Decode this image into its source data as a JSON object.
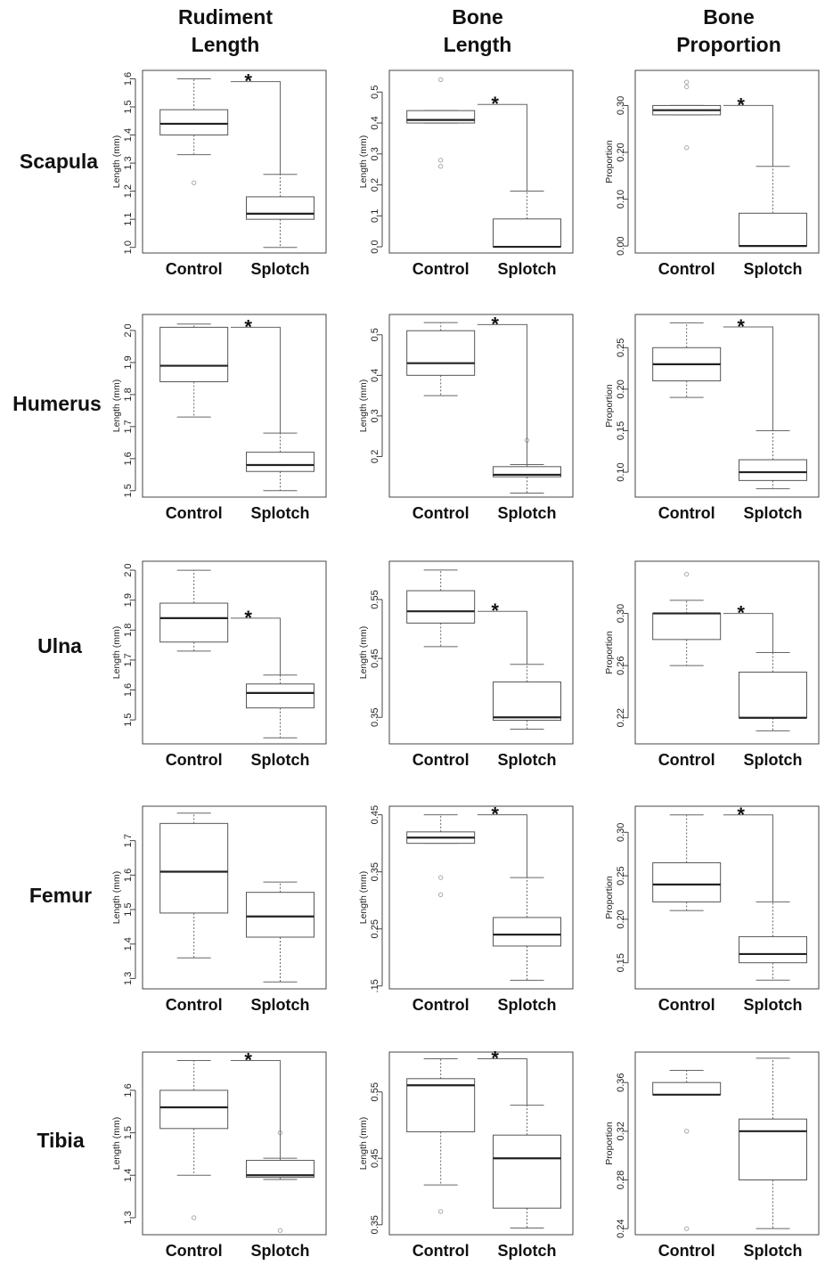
{
  "column_titles": [
    [
      "Rudiment",
      "Length"
    ],
    [
      "Bone",
      "Length"
    ],
    [
      "Bone",
      "Proportion"
    ]
  ],
  "row_labels": [
    "Scapula",
    "Humerus",
    "Ulna",
    "Femur",
    "Tibia"
  ],
  "colors": {
    "box": "#555555",
    "median": "#222222",
    "whisker": "#666666",
    "outlier": "#aaaaaa",
    "axis": "#444444"
  },
  "chart_data": [
    {
      "type": "box",
      "row": "Scapula",
      "column": "Rudiment Length",
      "ylabel": "Length (mm)",
      "categories": [
        "Control",
        "Splotch"
      ],
      "ylim": [
        0.98,
        1.63
      ],
      "yticks": [
        1.0,
        1.1,
        1.2,
        1.3,
        1.4,
        1.5,
        1.6
      ],
      "yticklabels": [
        "1.0",
        "1.1",
        "1.2",
        "1.3",
        "1.4",
        "1.5",
        "1.6"
      ],
      "boxes": [
        {
          "min": 1.33,
          "q1": 1.4,
          "median": 1.44,
          "q3": 1.49,
          "max": 1.6,
          "outliers": [
            1.23
          ]
        },
        {
          "min": 1.0,
          "q1": 1.1,
          "median": 1.12,
          "q3": 1.18,
          "max": 1.26,
          "outliers": []
        }
      ],
      "significant": true,
      "bracket_y": 1.59
    },
    {
      "type": "box",
      "row": "Scapula",
      "column": "Bone Length",
      "ylabel": "Length (mm)",
      "categories": [
        "Control",
        "Splotch"
      ],
      "ylim": [
        -0.02,
        0.57
      ],
      "yticks": [
        0.0,
        0.1,
        0.2,
        0.3,
        0.4,
        0.5
      ],
      "yticklabels": [
        "0.0",
        "0.1",
        "0.2",
        "0.3",
        "0.4",
        "0.5"
      ],
      "boxes": [
        {
          "min": 0.4,
          "q1": 0.4,
          "median": 0.41,
          "q3": 0.44,
          "max": 0.44,
          "outliers": [
            0.54,
            0.28,
            0.26
          ]
        },
        {
          "min": 0.0,
          "q1": 0.0,
          "median": 0.0,
          "q3": 0.09,
          "max": 0.18,
          "outliers": []
        }
      ],
      "significant": true,
      "bracket_y": 0.46
    },
    {
      "type": "box",
      "row": "Scapula",
      "column": "Bone Proportion",
      "ylabel": "Proportion",
      "categories": [
        "Control",
        "Splotch"
      ],
      "ylim": [
        -0.015,
        0.375
      ],
      "yticks": [
        0.0,
        0.1,
        0.2,
        0.3
      ],
      "yticklabels": [
        "0.00",
        "0.10",
        "0.20",
        "0.30"
      ],
      "boxes": [
        {
          "min": 0.28,
          "q1": 0.28,
          "median": 0.29,
          "q3": 0.3,
          "max": 0.3,
          "outliers": [
            0.35,
            0.34,
            0.21
          ]
        },
        {
          "min": 0.0,
          "q1": 0.0,
          "median": 0.0,
          "q3": 0.07,
          "max": 0.17,
          "outliers": []
        }
      ],
      "significant": true,
      "bracket_y": 0.3
    },
    {
      "type": "box",
      "row": "Humerus",
      "column": "Rudiment Length",
      "ylabel": "Length (mm)",
      "categories": [
        "Control",
        "Splotch"
      ],
      "ylim": [
        1.48,
        2.05
      ],
      "yticks": [
        1.5,
        1.6,
        1.7,
        1.8,
        1.9,
        2.0
      ],
      "yticklabels": [
        "1.5",
        "1.6",
        "1.7",
        "1.8",
        "1.9",
        "2.0"
      ],
      "boxes": [
        {
          "min": 1.73,
          "q1": 1.84,
          "median": 1.89,
          "q3": 2.01,
          "max": 2.02,
          "outliers": []
        },
        {
          "min": 1.5,
          "q1": 1.56,
          "median": 1.58,
          "q3": 1.62,
          "max": 1.68,
          "outliers": []
        }
      ],
      "significant": true,
      "bracket_y": 2.01
    },
    {
      "type": "box",
      "row": "Humerus",
      "column": "Bone Length",
      "ylabel": "Length (mm)",
      "categories": [
        "Control",
        "Splotch"
      ],
      "ylim": [
        0.1,
        0.55
      ],
      "yticks": [
        0.2,
        0.3,
        0.4,
        0.5
      ],
      "yticklabels": [
        "0.2",
        "0.3",
        "0.4",
        "0.5"
      ],
      "boxes": [
        {
          "min": 0.35,
          "q1": 0.4,
          "median": 0.43,
          "q3": 0.51,
          "max": 0.53,
          "outliers": []
        },
        {
          "min": 0.11,
          "q1": 0.15,
          "median": 0.155,
          "q3": 0.175,
          "max": 0.18,
          "outliers": [
            0.24
          ]
        }
      ],
      "significant": true,
      "bracket_y": 0.525
    },
    {
      "type": "box",
      "row": "Humerus",
      "column": "Bone Proportion",
      "ylabel": "Proportion",
      "categories": [
        "Control",
        "Splotch"
      ],
      "ylim": [
        0.07,
        0.29
      ],
      "yticks": [
        0.1,
        0.15,
        0.2,
        0.25
      ],
      "yticklabels": [
        "0.10",
        "0.15",
        "0.20",
        "0.25"
      ],
      "boxes": [
        {
          "min": 0.19,
          "q1": 0.21,
          "median": 0.23,
          "q3": 0.25,
          "max": 0.28,
          "outliers": []
        },
        {
          "min": 0.08,
          "q1": 0.09,
          "median": 0.1,
          "q3": 0.115,
          "max": 0.15,
          "outliers": []
        }
      ],
      "significant": true,
      "bracket_y": 0.275
    },
    {
      "type": "box",
      "row": "Ulna",
      "column": "Rudiment Length",
      "ylabel": "Length (mm)",
      "categories": [
        "Control",
        "Splotch"
      ],
      "ylim": [
        1.42,
        2.03
      ],
      "yticks": [
        1.5,
        1.6,
        1.7,
        1.8,
        1.9,
        2.0
      ],
      "yticklabels": [
        "1.5",
        "1.6",
        "1.7",
        "1.8",
        "1.9",
        "2.0"
      ],
      "boxes": [
        {
          "min": 1.73,
          "q1": 1.76,
          "median": 1.84,
          "q3": 1.89,
          "max": 2.0,
          "outliers": []
        },
        {
          "min": 1.44,
          "q1": 1.54,
          "median": 1.59,
          "q3": 1.62,
          "max": 1.65,
          "outliers": []
        }
      ],
      "significant": true,
      "bracket_y": 1.84
    },
    {
      "type": "box",
      "row": "Ulna",
      "column": "Bone Length",
      "ylabel": "Length (mm)",
      "categories": [
        "Control",
        "Splotch"
      ],
      "ylim": [
        0.305,
        0.615
      ],
      "yticks": [
        0.35,
        0.45,
        0.55
      ],
      "yticklabels": [
        "0.35",
        "0.45",
        "0.55"
      ],
      "boxes": [
        {
          "min": 0.47,
          "q1": 0.51,
          "median": 0.53,
          "q3": 0.565,
          "max": 0.6,
          "outliers": []
        },
        {
          "min": 0.33,
          "q1": 0.345,
          "median": 0.35,
          "q3": 0.41,
          "max": 0.44,
          "outliers": []
        }
      ],
      "significant": true,
      "bracket_y": 0.53
    },
    {
      "type": "box",
      "row": "Ulna",
      "column": "Bone Proportion",
      "ylabel": "Proportion",
      "categories": [
        "Control",
        "Splotch"
      ],
      "ylim": [
        0.2,
        0.34
      ],
      "yticks": [
        0.22,
        0.26,
        0.3
      ],
      "yticklabels": [
        "0.22",
        "0.26",
        "0.30"
      ],
      "boxes": [
        {
          "min": 0.26,
          "q1": 0.28,
          "median": 0.3,
          "q3": 0.3,
          "max": 0.31,
          "outliers": [
            0.33
          ]
        },
        {
          "min": 0.21,
          "q1": 0.22,
          "median": 0.22,
          "q3": 0.255,
          "max": 0.27,
          "outliers": []
        }
      ],
      "significant": true,
      "bracket_y": 0.3
    },
    {
      "type": "box",
      "row": "Femur",
      "column": "Rudiment Length",
      "ylabel": "Length (mm)",
      "categories": [
        "Control",
        "Splotch"
      ],
      "ylim": [
        1.27,
        1.8
      ],
      "yticks": [
        1.3,
        1.4,
        1.5,
        1.6,
        1.7
      ],
      "yticklabels": [
        "1.3",
        "1.4",
        "1.5",
        "1.6",
        "1.7"
      ],
      "boxes": [
        {
          "min": 1.36,
          "q1": 1.49,
          "median": 1.61,
          "q3": 1.75,
          "max": 1.78,
          "outliers": []
        },
        {
          "min": 1.29,
          "q1": 1.42,
          "median": 1.48,
          "q3": 1.55,
          "max": 1.58,
          "outliers": []
        }
      ],
      "significant": false
    },
    {
      "type": "box",
      "row": "Femur",
      "column": "Bone Length",
      "ylabel": "Length (mm)",
      "categories": [
        "Control",
        "Splotch"
      ],
      "ylim": [
        0.145,
        0.465
      ],
      "yticks": [
        0.15,
        0.25,
        0.35,
        0.45
      ],
      "yticklabels": [
        ".15",
        "0.25",
        "0.35",
        "0.45"
      ],
      "boxes": [
        {
          "min": 0.4,
          "q1": 0.4,
          "median": 0.41,
          "q3": 0.42,
          "max": 0.45,
          "outliers": [
            0.34,
            0.31
          ]
        },
        {
          "min": 0.16,
          "q1": 0.22,
          "median": 0.24,
          "q3": 0.27,
          "max": 0.34,
          "outliers": []
        }
      ],
      "significant": true,
      "bracket_y": 0.45
    },
    {
      "type": "box",
      "row": "Femur",
      "column": "Bone Proportion",
      "ylabel": "Proportion",
      "categories": [
        "Control",
        "Splotch"
      ],
      "ylim": [
        0.12,
        0.33
      ],
      "yticks": [
        0.15,
        0.2,
        0.25,
        0.3
      ],
      "yticklabels": [
        "0.15",
        "0.20",
        "0.25",
        "0.30"
      ],
      "boxes": [
        {
          "min": 0.21,
          "q1": 0.22,
          "median": 0.24,
          "q3": 0.265,
          "max": 0.32,
          "outliers": []
        },
        {
          "min": 0.13,
          "q1": 0.15,
          "median": 0.16,
          "q3": 0.18,
          "max": 0.22,
          "outliers": []
        }
      ],
      "significant": true,
      "bracket_y": 0.32
    },
    {
      "type": "box",
      "row": "Tibia",
      "column": "Rudiment Length",
      "ylabel": "Length (mm)",
      "categories": [
        "Control",
        "Splotch"
      ],
      "ylim": [
        1.26,
        1.69
      ],
      "yticks": [
        1.3,
        1.4,
        1.5,
        1.6
      ],
      "yticklabels": [
        "1.3",
        "1.4",
        "1.5",
        "1.6"
      ],
      "boxes": [
        {
          "min": 1.4,
          "q1": 1.51,
          "median": 1.56,
          "q3": 1.6,
          "max": 1.67,
          "outliers": [
            1.3
          ]
        },
        {
          "min": 1.39,
          "q1": 1.395,
          "median": 1.4,
          "q3": 1.435,
          "max": 1.44,
          "outliers": [
            1.5,
            1.27
          ]
        }
      ],
      "significant": true,
      "bracket_y": 1.67
    },
    {
      "type": "box",
      "row": "Tibia",
      "column": "Bone Length",
      "ylabel": "Length (mm)",
      "categories": [
        "Control",
        "Splotch"
      ],
      "ylim": [
        0.335,
        0.61
      ],
      "yticks": [
        0.35,
        0.45,
        0.55
      ],
      "yticklabels": [
        "0.35",
        "0.45",
        "0.55"
      ],
      "boxes": [
        {
          "min": 0.41,
          "q1": 0.49,
          "median": 0.56,
          "q3": 0.57,
          "max": 0.6,
          "outliers": [
            0.37
          ]
        },
        {
          "min": 0.345,
          "q1": 0.375,
          "median": 0.45,
          "q3": 0.485,
          "max": 0.53,
          "outliers": []
        }
      ],
      "significant": true,
      "bracket_y": 0.6
    },
    {
      "type": "box",
      "row": "Tibia",
      "column": "Bone Proportion",
      "ylabel": "Proportion",
      "categories": [
        "Control",
        "Splotch"
      ],
      "ylim": [
        0.235,
        0.385
      ],
      "yticks": [
        0.24,
        0.28,
        0.32,
        0.36
      ],
      "yticklabels": [
        "0.24",
        "0.28",
        "0.32",
        "0.36"
      ],
      "boxes": [
        {
          "min": 0.35,
          "q1": 0.35,
          "median": 0.35,
          "q3": 0.36,
          "max": 0.37,
          "outliers": [
            0.32,
            0.24
          ]
        },
        {
          "min": 0.24,
          "q1": 0.28,
          "median": 0.32,
          "q3": 0.33,
          "max": 0.38,
          "outliers": []
        }
      ],
      "significant": false
    }
  ],
  "significance_mark": "*"
}
